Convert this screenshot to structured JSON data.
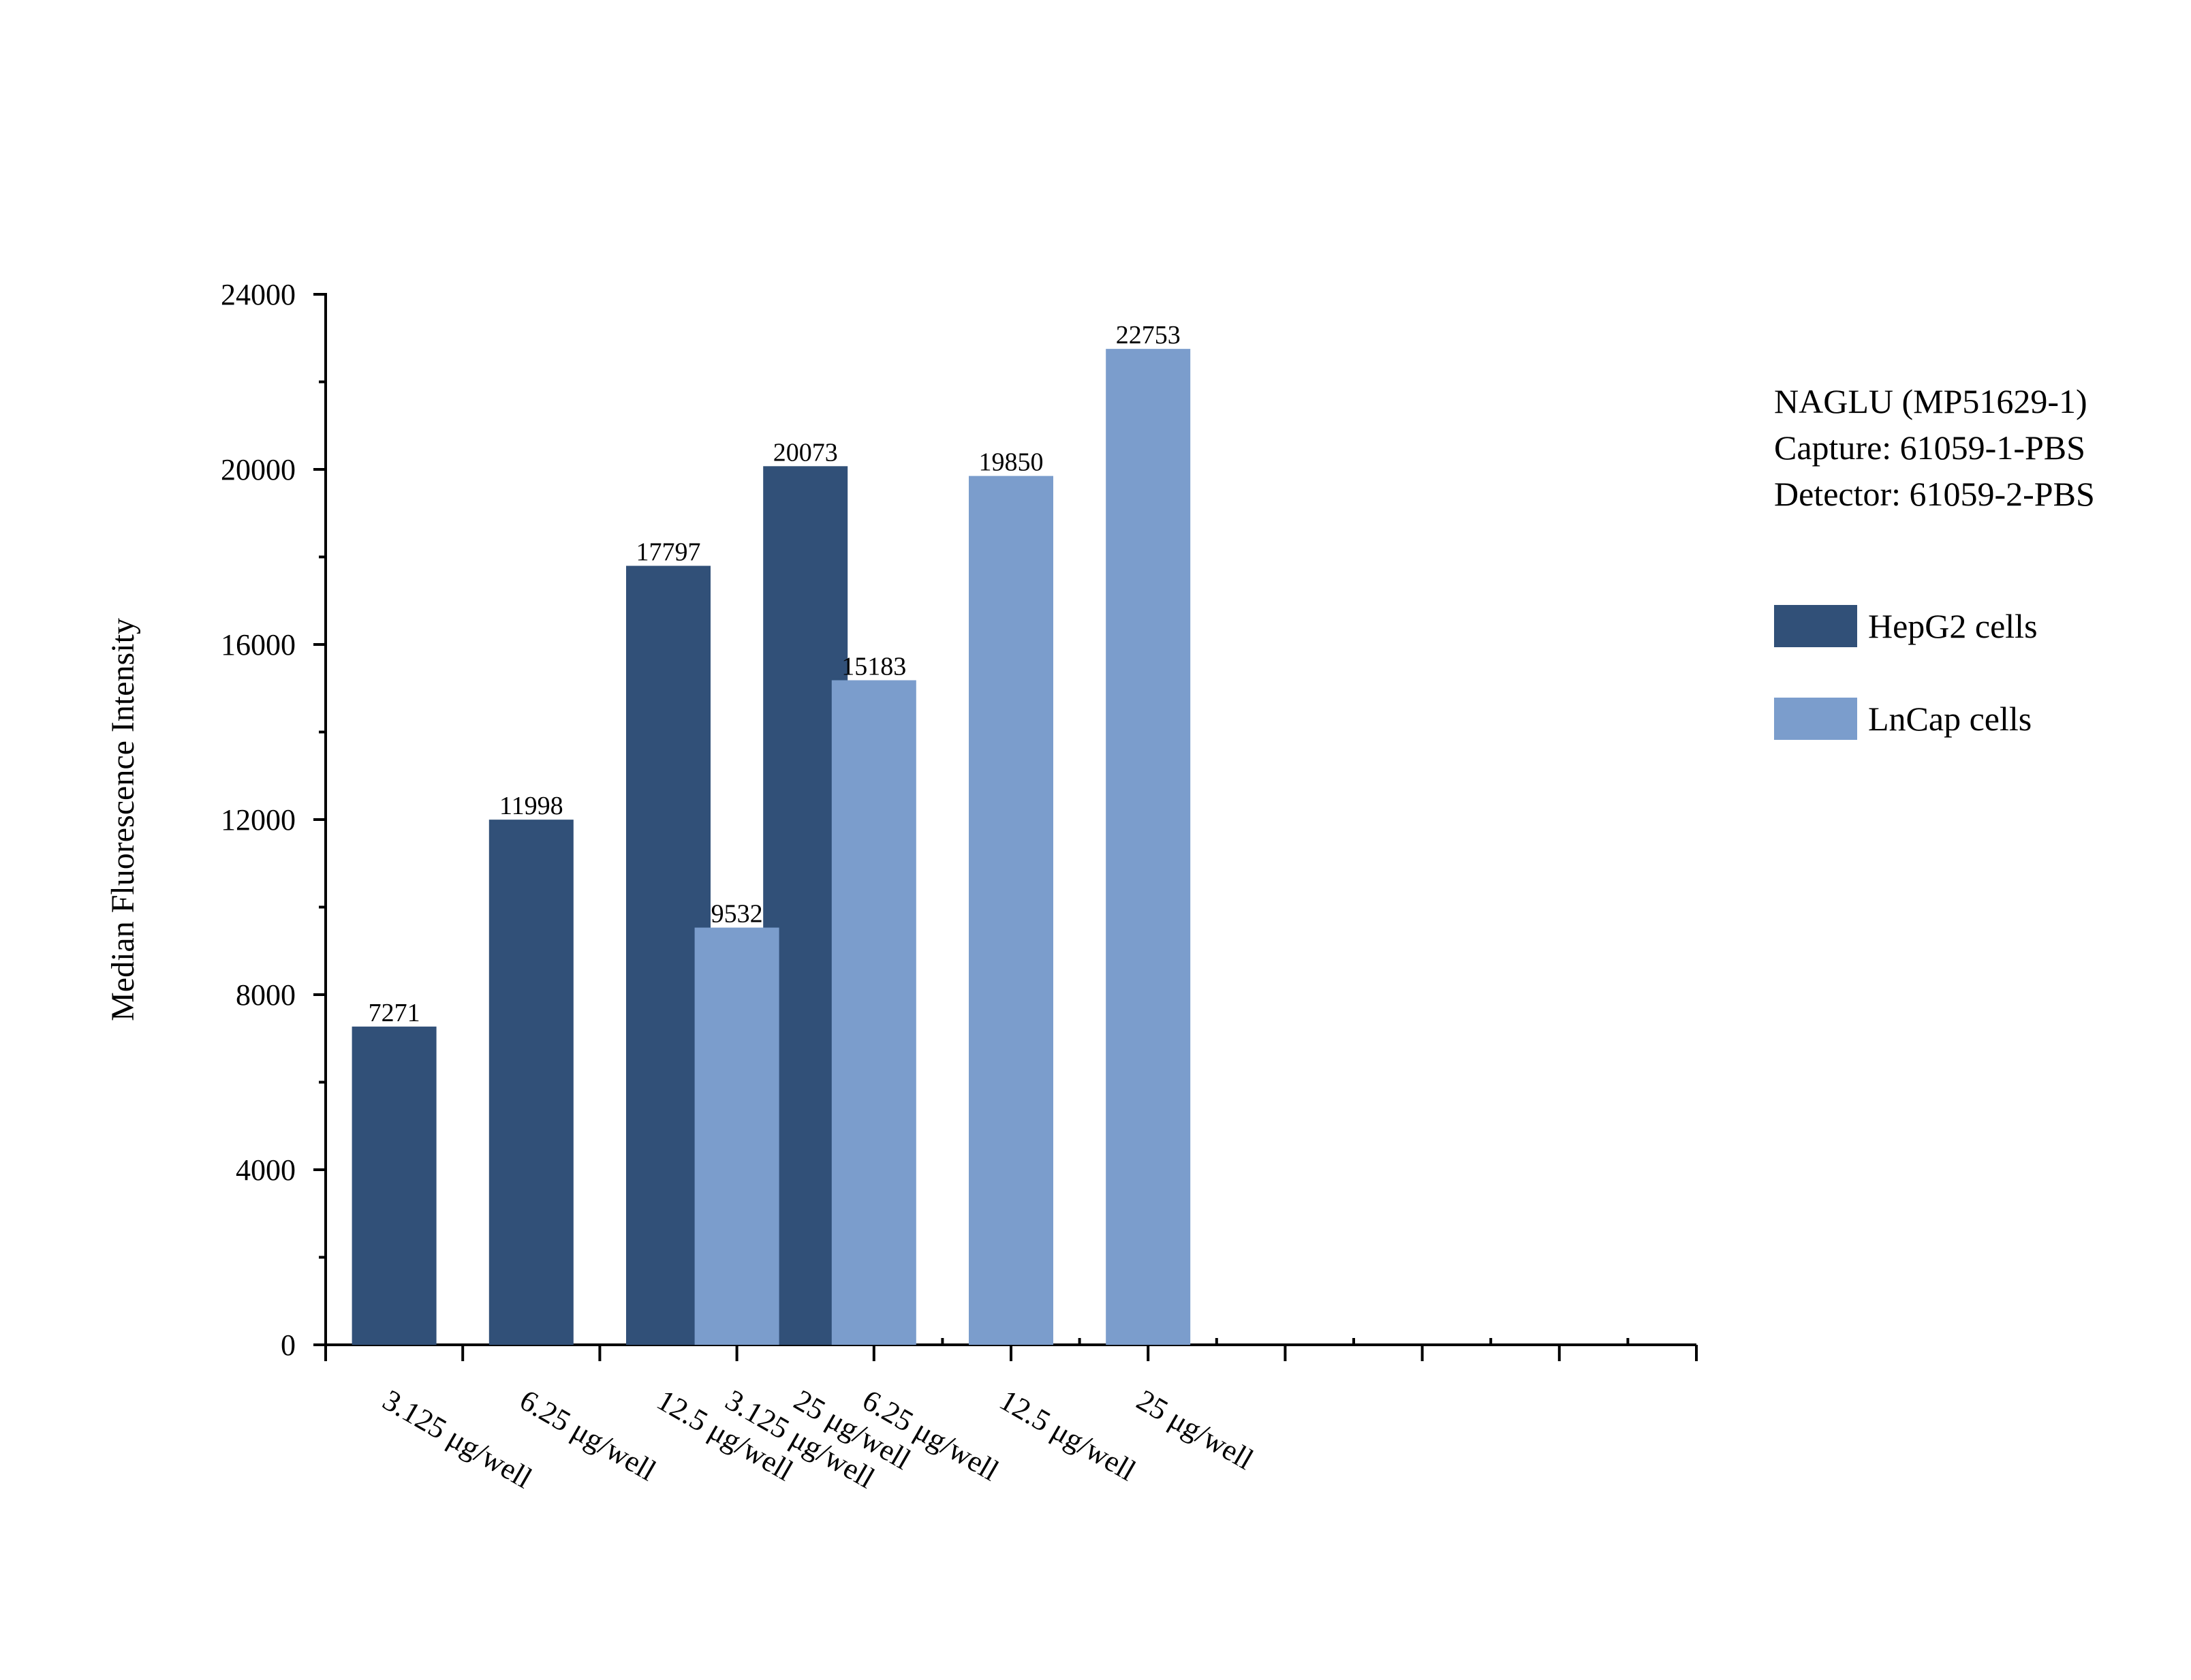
{
  "chart_data": {
    "type": "bar",
    "ylabel": "Median Fluorescence Intensity",
    "ylim": [
      0,
      24000
    ],
    "yticks": [
      0,
      4000,
      8000,
      12000,
      16000,
      20000,
      24000
    ],
    "grid": false,
    "legend_position": "right",
    "annotation": [
      "NAGLU (MP51629-1)",
      "Capture: 61059-1-PBS",
      "Detector: 61059-2-PBS"
    ],
    "series": [
      {
        "name": "HepG2 cells",
        "color": "#315078",
        "categories": [
          "3.125 μg/well",
          "6.25 μg/well",
          "12.5 μg/well",
          "25 μg/well"
        ],
        "values": [
          7271,
          11998,
          17797,
          20073
        ]
      },
      {
        "name": "LnCap cells",
        "color": "#7b9dcc",
        "categories": [
          "3.125 μg/well",
          "6.25 μg/well",
          "12.5 μg/well",
          "25 μg/well"
        ],
        "values": [
          9532,
          15183,
          19850,
          22753
        ]
      }
    ]
  }
}
